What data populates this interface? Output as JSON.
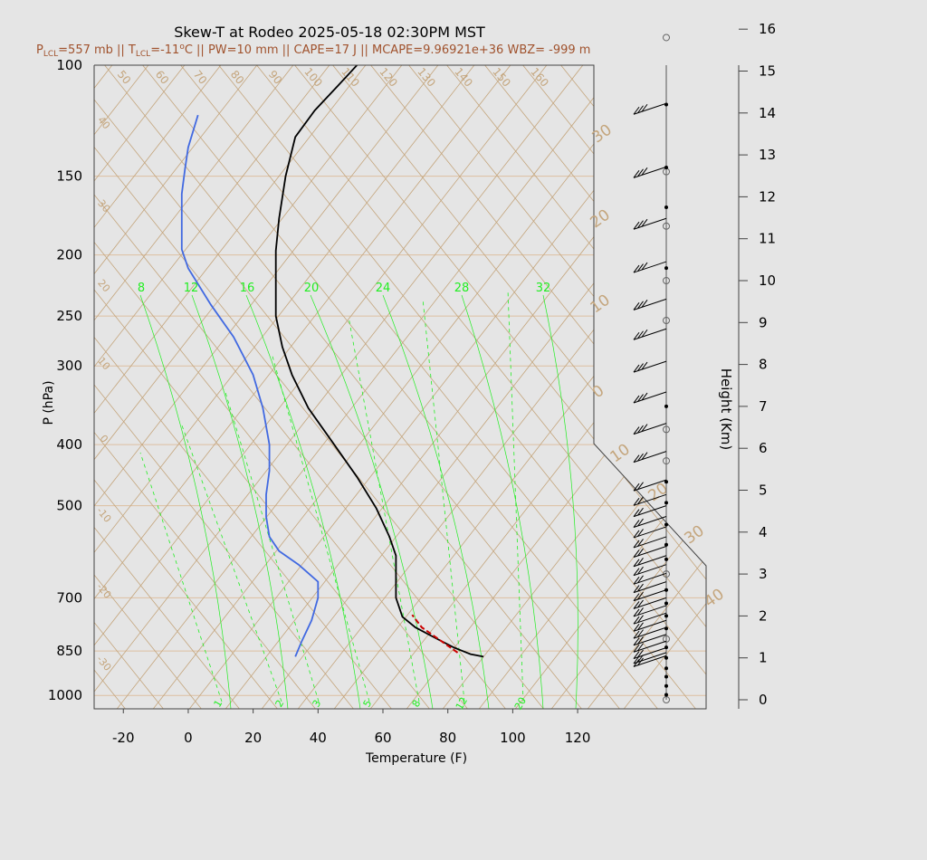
{
  "chart_data": {
    "type": "line",
    "title": "Skew-T at Rodeo 2025-05-18 02:30PM MST",
    "subtitle": {
      "pre": "P",
      "pre_sub": "LCL",
      "a": "=557 mb || T",
      "t_sub": "LCL",
      "b": "=-11",
      "deg": "o",
      "c": "C || PW=10 mm || CAPE=17 J || MCAPE=9.96921e+36 WBZ= -999 m"
    },
    "xlabel": "Temperature (F)",
    "ylabel": "P (hPa)",
    "y2label": "Height (Km)",
    "xlim": [
      -29,
      125
    ],
    "ylim": [
      1050,
      100
    ],
    "y_scale": "log",
    "x_ticks": [
      "-20",
      "0",
      "20",
      "40",
      "60",
      "80",
      "100",
      "120"
    ],
    "y_ticks": [
      "100",
      "150",
      "200",
      "250",
      "300",
      "400",
      "500",
      "700",
      "850",
      "1000"
    ],
    "height_ticks": [
      "0",
      "1",
      "2",
      "3",
      "4",
      "5",
      "6",
      "7",
      "8",
      "9",
      "10",
      "11",
      "12",
      "13",
      "14",
      "15",
      "16"
    ],
    "isotherm_labels": [
      "50",
      "60",
      "70",
      "80",
      "90",
      "100",
      "110",
      "120",
      "130",
      "140",
      "150",
      "160"
    ],
    "dry_adiabat_labels": [
      "40",
      "30",
      "20",
      "10",
      "0",
      "-10",
      "-20",
      "-30"
    ],
    "moist_adiabat_labels": [
      "30",
      "20",
      "10",
      "0",
      "10",
      "20",
      "30",
      "40"
    ],
    "mixing_ratio_top_labels": [
      "8",
      "12",
      "16",
      "20",
      "24",
      "28",
      "32"
    ],
    "mixing_ratio_bottom_labels": [
      "1",
      "2",
      "3",
      "5",
      "8",
      "12",
      "20"
    ],
    "series": [
      {
        "role": "temperature",
        "color": "#000000",
        "points": [
          [
            91,
            868
          ],
          [
            87,
            860
          ],
          [
            82,
            840
          ],
          [
            76,
            810
          ],
          [
            70,
            780
          ],
          [
            66,
            750
          ],
          [
            64,
            700
          ],
          [
            64,
            660
          ],
          [
            64,
            640
          ],
          [
            64,
            600
          ],
          [
            62,
            560
          ],
          [
            58,
            505
          ],
          [
            52,
            450
          ],
          [
            45,
            400
          ],
          [
            37,
            350
          ],
          [
            32,
            310
          ],
          [
            29,
            280
          ],
          [
            27,
            250
          ],
          [
            27,
            220
          ],
          [
            27,
            197
          ],
          [
            28,
            175
          ],
          [
            30,
            150
          ],
          [
            33,
            130
          ],
          [
            39,
            118
          ],
          [
            46,
            108
          ],
          [
            52,
            100
          ]
        ]
      },
      {
        "role": "dewpoint",
        "color": "#4169e1",
        "points": [
          [
            33,
            868
          ],
          [
            35,
            820
          ],
          [
            38,
            760
          ],
          [
            40,
            700
          ],
          [
            40,
            660
          ],
          [
            34,
            620
          ],
          [
            28,
            590
          ],
          [
            25,
            560
          ],
          [
            24,
            520
          ],
          [
            24,
            480
          ],
          [
            25,
            440
          ],
          [
            25,
            400
          ],
          [
            23,
            350
          ],
          [
            20,
            310
          ],
          [
            14,
            270
          ],
          [
            7,
            240
          ],
          [
            0,
            210
          ],
          [
            -2,
            196
          ],
          [
            -2,
            180
          ],
          [
            -2,
            160
          ],
          [
            -1,
            146
          ],
          [
            0,
            135
          ],
          [
            3,
            120
          ]
        ]
      },
      {
        "role": "parcel",
        "color": "#cc0000",
        "points": [
          [
            83,
            855
          ],
          [
            78,
            820
          ],
          [
            72,
            780
          ],
          [
            69,
            745
          ]
        ]
      }
    ],
    "wind_barbs": [
      {
        "p": 115,
        "spd": 30
      },
      {
        "p": 145,
        "spd": 30
      },
      {
        "p": 175,
        "spd": 30
      },
      {
        "p": 205,
        "spd": 30
      },
      {
        "p": 235,
        "spd": 30
      },
      {
        "p": 262,
        "spd": 25
      },
      {
        "p": 295,
        "spd": 25
      },
      {
        "p": 330,
        "spd": 25
      },
      {
        "p": 370,
        "spd": 25
      },
      {
        "p": 410,
        "spd": 25
      },
      {
        "p": 455,
        "spd": 20
      },
      {
        "p": 480,
        "spd": 15
      },
      {
        "p": 500,
        "spd": 15
      },
      {
        "p": 520,
        "spd": 15
      },
      {
        "p": 540,
        "spd": 15
      },
      {
        "p": 560,
        "spd": 15
      },
      {
        "p": 580,
        "spd": 15
      },
      {
        "p": 600,
        "spd": 15
      },
      {
        "p": 620,
        "spd": 15
      },
      {
        "p": 640,
        "spd": 15
      },
      {
        "p": 660,
        "spd": 15
      },
      {
        "p": 680,
        "spd": 15
      },
      {
        "p": 700,
        "spd": 15
      },
      {
        "p": 720,
        "spd": 15
      },
      {
        "p": 740,
        "spd": 15
      },
      {
        "p": 760,
        "spd": 15
      },
      {
        "p": 780,
        "spd": 15
      },
      {
        "p": 800,
        "spd": 15
      },
      {
        "p": 820,
        "spd": 15
      },
      {
        "p": 840,
        "spd": 15
      },
      {
        "p": 855,
        "spd": 15
      },
      {
        "p": 865,
        "spd": 15
      }
    ],
    "wind_markers": [
      {
        "h": 0,
        "type": "circle"
      },
      {
        "h": 0.12,
        "type": "dot"
      },
      {
        "h": 0.33,
        "type": "dot"
      },
      {
        "h": 0.55,
        "type": "dot"
      },
      {
        "h": 0.75,
        "type": "dot"
      },
      {
        "h": 1.0,
        "type": "dot"
      },
      {
        "h": 1.25,
        "type": "dot"
      },
      {
        "h": 1.45,
        "type": "circle"
      },
      {
        "h": 1.7,
        "type": "dot"
      },
      {
        "h": 2.0,
        "type": "dot"
      },
      {
        "h": 2.3,
        "type": "dot"
      },
      {
        "h": 2.62,
        "type": "dot"
      },
      {
        "h": 3.0,
        "type": "circle"
      },
      {
        "h": 3.35,
        "type": "dot"
      },
      {
        "h": 3.7,
        "type": "dot"
      },
      {
        "h": 4.18,
        "type": "dot"
      },
      {
        "h": 4.7,
        "type": "dot"
      },
      {
        "h": 5.2,
        "type": "dot"
      },
      {
        "h": 5.7,
        "type": "circle"
      },
      {
        "h": 6.45,
        "type": "circle"
      },
      {
        "h": 7.0,
        "type": "dot"
      },
      {
        "h": 9.05,
        "type": "circle"
      },
      {
        "h": 10.0,
        "type": "circle"
      },
      {
        "h": 10.3,
        "type": "dot"
      },
      {
        "h": 11.3,
        "type": "circle"
      },
      {
        "h": 11.75,
        "type": "dot"
      },
      {
        "h": 12.6,
        "type": "circle"
      },
      {
        "h": 12.7,
        "type": "dot"
      },
      {
        "h": 14.2,
        "type": "dot"
      },
      {
        "h": 15.8,
        "type": "circle"
      }
    ],
    "grid": true,
    "colors": {
      "background": "#e5e5e5",
      "isotherm": "#c4a57c",
      "isobar": "#ddbfa0",
      "mixing_ratio": "#22ee22",
      "temperature": "#000000",
      "dewpoint": "#4169e1",
      "parcel": "#cc0000",
      "subtitle": "#a0522d"
    }
  }
}
